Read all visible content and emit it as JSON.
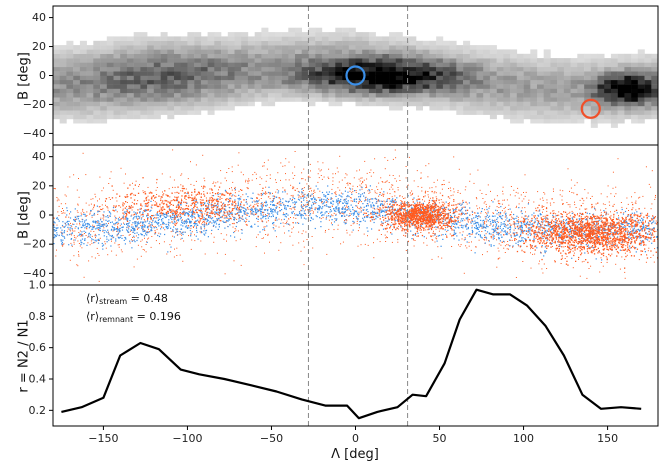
{
  "chart_data": [
    {
      "type": "heatmap",
      "ylabel": "B [deg]",
      "xlim": [
        -180,
        180
      ],
      "ylim": [
        -48,
        48
      ],
      "yticks": [
        "40",
        "20",
        "0",
        "−20",
        "−40"
      ],
      "ytick_values": [
        40,
        20,
        0,
        -20,
        -40
      ],
      "markers": [
        {
          "lambda": 0,
          "b": 0,
          "color": "#3b8fe8"
        },
        {
          "lambda": 140,
          "b": -23,
          "color": "#f0502a"
        }
      ],
      "vlines": [
        -28,
        31
      ]
    },
    {
      "type": "scatter",
      "ylabel": "B [deg]",
      "xlim": [
        -180,
        180
      ],
      "ylim": [
        -48,
        48
      ],
      "yticks": [
        "40",
        "20",
        "0",
        "−20",
        "−40"
      ],
      "ytick_values": [
        40,
        20,
        0,
        -20,
        -40
      ],
      "colors": {
        "stream": "#3b8fe8",
        "remnant": "#ff5a1f"
      },
      "vlines": [
        -28,
        31
      ]
    },
    {
      "type": "line",
      "xlabel": "Λ [deg]",
      "ylabel": "r = N2 / N1",
      "xlim": [
        -180,
        180
      ],
      "ylim": [
        0.1,
        1.0
      ],
      "xticks": [
        "−150",
        "−100",
        "−50",
        "0",
        "50",
        "100",
        "150"
      ],
      "xtick_values": [
        -150,
        -100,
        -50,
        0,
        50,
        100,
        150
      ],
      "yticks": [
        "1.0",
        "0.8",
        "0.6",
        "0.4",
        "0.2"
      ],
      "ytick_values": [
        1.0,
        0.8,
        0.6,
        0.4,
        0.2
      ],
      "x": [
        -175,
        -163,
        -150,
        -140,
        -128,
        -117,
        -104,
        -93,
        -78,
        -62,
        -47,
        -32,
        -18,
        -5,
        2,
        13,
        25,
        34,
        42,
        53,
        62,
        72,
        82,
        92,
        102,
        113,
        124,
        135,
        146,
        158,
        170
      ],
      "y": [
        0.19,
        0.22,
        0.28,
        0.55,
        0.63,
        0.59,
        0.46,
        0.43,
        0.4,
        0.36,
        0.32,
        0.27,
        0.23,
        0.23,
        0.15,
        0.19,
        0.22,
        0.3,
        0.29,
        0.5,
        0.78,
        0.97,
        0.94,
        0.94,
        0.87,
        0.74,
        0.55,
        0.3,
        0.21,
        0.22,
        0.21
      ],
      "vlines": [
        -28,
        31
      ],
      "annotations": [
        {
          "prefix": "⟨r⟩",
          "sub": "stream",
          "suffix": " = 0.48"
        },
        {
          "prefix": "⟨r⟩",
          "sub": "remnant",
          "suffix": " = 0.196"
        }
      ]
    }
  ]
}
